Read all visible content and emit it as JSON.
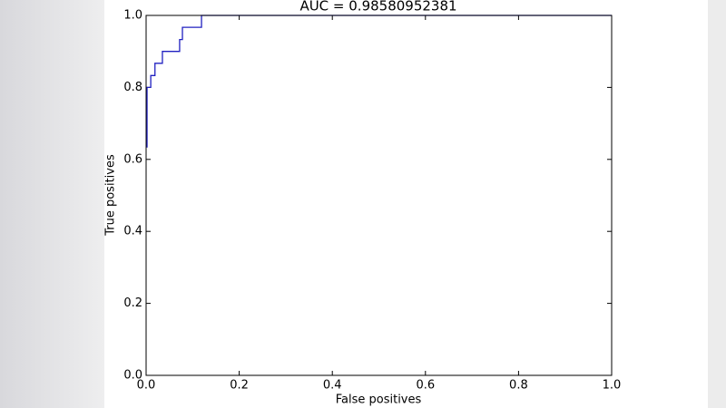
{
  "chart_data": {
    "type": "line",
    "title": "AUC = 0.98580952381",
    "xlabel": "False positives",
    "ylabel": "True positives",
    "x": [
      0.002,
      0.002,
      0.01,
      0.01,
      0.019,
      0.019,
      0.035,
      0.035,
      0.072,
      0.072,
      0.078,
      0.078,
      0.119,
      0.119,
      1.0
    ],
    "series": [
      {
        "color": "#2020c0",
        "values": [
          0.633,
          0.8,
          0.8,
          0.833,
          0.833,
          0.867,
          0.867,
          0.9,
          0.9,
          0.933,
          0.933,
          0.967,
          0.967,
          1.0,
          1.0
        ]
      }
    ],
    "xlim": [
      0,
      1
    ],
    "ylim": [
      0,
      1
    ],
    "xticks": [
      {
        "value": 0,
        "label": "0.0"
      },
      0.2,
      0.4,
      0.6,
      0.8,
      {
        "value": 1,
        "label": "1.0"
      }
    ],
    "yticks": [
      {
        "value": 0,
        "label": "0.0"
      },
      0.2,
      0.4,
      0.6,
      0.8,
      {
        "value": 1,
        "label": "1.0"
      }
    ],
    "grid": false
  }
}
